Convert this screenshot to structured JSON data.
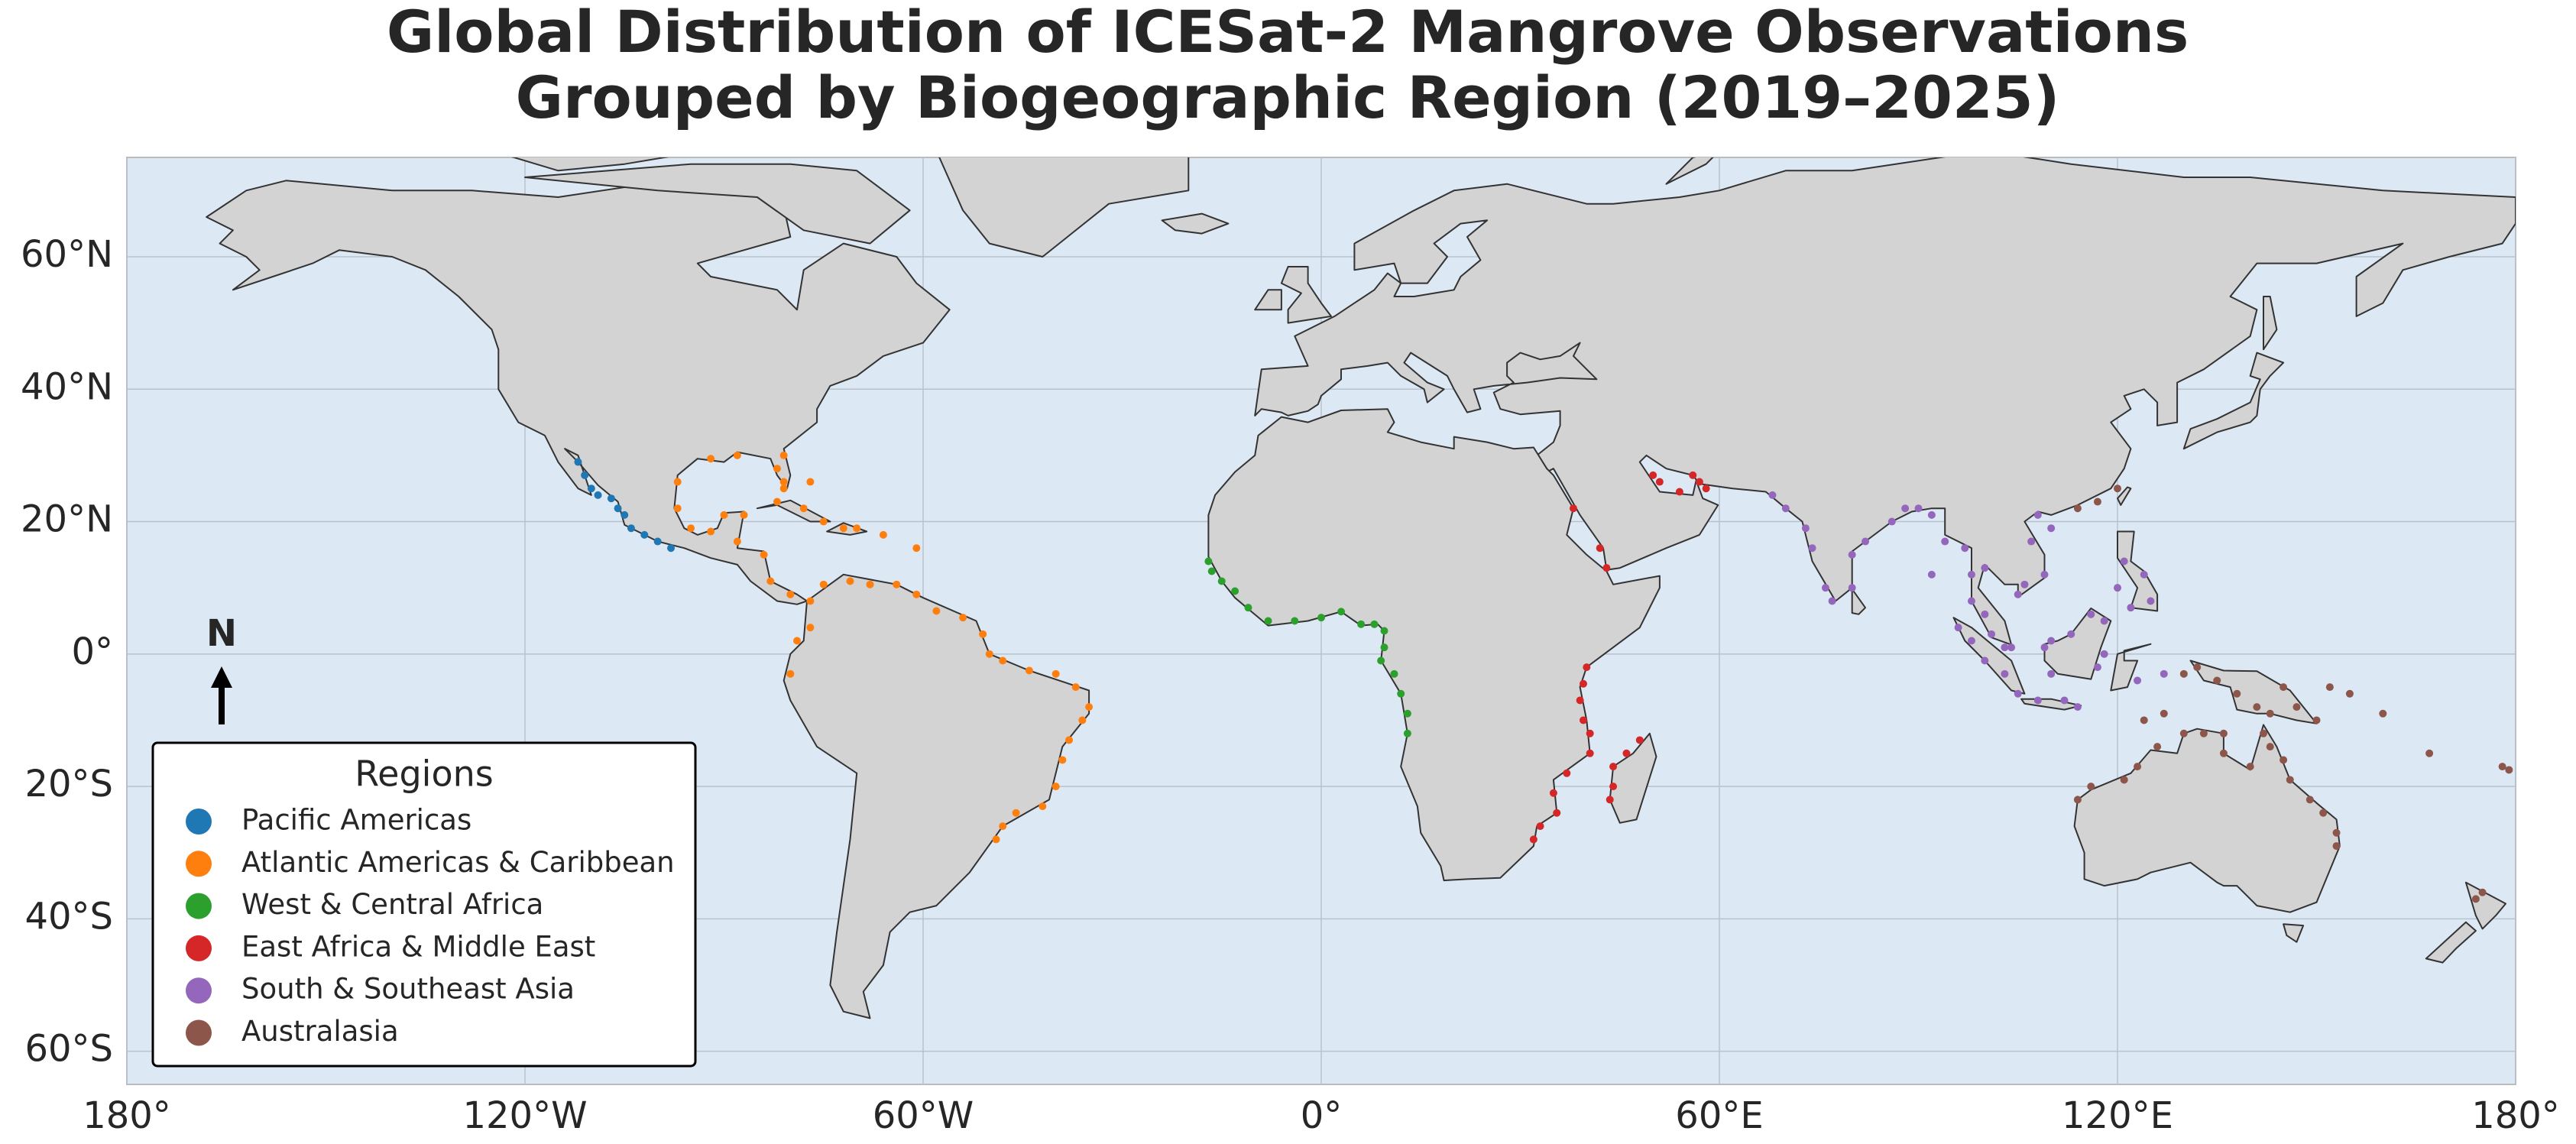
{
  "chart_data": {
    "type": "scatter",
    "title": [
      "Global Distribution of ICESat-2 Mangrove Observations",
      "Grouped by Biogeographic Region (2019–2025)"
    ],
    "xlim": [
      -180,
      180
    ],
    "ylim": [
      -65,
      75
    ],
    "xticks": [
      {
        "value": -180,
        "label": "180°"
      },
      {
        "value": -120,
        "label": "120°W"
      },
      {
        "value": -60,
        "label": "60°W"
      },
      {
        "value": 0,
        "label": "0°"
      },
      {
        "value": 60,
        "label": "60°E"
      },
      {
        "value": 120,
        "label": "120°E"
      },
      {
        "value": 180,
        "label": "180°"
      }
    ],
    "yticks": [
      {
        "value": -60,
        "label": "60°S"
      },
      {
        "value": -40,
        "label": "40°S"
      },
      {
        "value": -20,
        "label": "20°S"
      },
      {
        "value": 0,
        "label": "0°"
      },
      {
        "value": 20,
        "label": "20°N"
      },
      {
        "value": 40,
        "label": "40°N"
      },
      {
        "value": 60,
        "label": "60°N"
      }
    ],
    "grid": true,
    "legend": "lower left",
    "legend_title": "Regions",
    "north_arrow": "N",
    "series": [
      {
        "name": "Pacific Americas",
        "color": "#1f77b4",
        "x": [
          -112,
          -111,
          -110,
          -109,
          -107,
          -106,
          -105,
          -104,
          -102,
          -100,
          -98
        ],
        "values": [
          29,
          27,
          25,
          24,
          23.5,
          22,
          21,
          19,
          18,
          17,
          16
        ]
      },
      {
        "name": "Atlantic Americas & Caribbean",
        "color": "#ff7f0e",
        "x": [
          -97,
          -97,
          -95,
          -92,
          -90,
          -87,
          -88,
          -84,
          -83,
          -80,
          -77,
          -75,
          -71,
          -68,
          -64,
          -61,
          -58,
          -54,
          -51,
          -50,
          -48,
          -44,
          -40,
          -37,
          -35,
          -36,
          -38,
          -39,
          -40,
          -42,
          -46,
          -48,
          -49,
          -82,
          -78,
          -75,
          -72,
          -70,
          -66,
          -61,
          -77,
          -81,
          -81,
          -82,
          -80,
          -79,
          -77,
          -81,
          -88,
          -92
        ],
        "values": [
          26,
          22,
          19,
          18.5,
          21,
          21,
          17,
          15,
          11,
          9,
          8,
          10.5,
          11,
          10.5,
          10.5,
          9,
          6.5,
          5.5,
          3,
          0,
          -1,
          -2.5,
          -3,
          -5,
          -8,
          -10,
          -13,
          -16,
          -20,
          -23,
          -24,
          -26,
          -28,
          23,
          22,
          20,
          19,
          19,
          18,
          16,
          26,
          25,
          26,
          28,
          -3,
          2,
          4,
          30,
          30,
          29.5
        ]
      },
      {
        "name": "West & Central Africa",
        "color": "#2ca02c",
        "x": [
          -17,
          -16.5,
          -15,
          -13,
          -11,
          -8,
          -4,
          0,
          3,
          6,
          8,
          9.5,
          9.5,
          9,
          11,
          12,
          13,
          13
        ],
        "values": [
          14,
          12.5,
          11,
          9.5,
          7,
          5,
          5,
          5.5,
          6.4,
          4.5,
          4.5,
          3.5,
          1,
          -1,
          -3,
          -6,
          -9,
          -12
        ]
      },
      {
        "name": "East Africa & Middle East",
        "color": "#d62728",
        "x": [
          40,
          39.5,
          39,
          39.5,
          40.5,
          40.5,
          37,
          35,
          35.5,
          33,
          32,
          44,
          44,
          43.5,
          46,
          48,
          56,
          57,
          54,
          51,
          50,
          43,
          42,
          38,
          58
        ],
        "values": [
          -2,
          -4.5,
          -7,
          -10,
          -12,
          -15,
          -18,
          -21,
          -24,
          -26,
          -28,
          -17,
          -20,
          -22,
          -15,
          -13,
          27,
          26,
          24.5,
          26,
          27,
          13,
          16,
          22,
          25
        ]
      },
      {
        "name": "South & Southeast Asia",
        "color": "#9467bd",
        "x": [
          68,
          70,
          73,
          74,
          76,
          77,
          80,
          80,
          82,
          86,
          88,
          90,
          92,
          94,
          97,
          98,
          98,
          100,
          101,
          103,
          104,
          105,
          106,
          107,
          108,
          110,
          109,
          100,
          96,
          98,
          100,
          103,
          105,
          108,
          112,
          114,
          110,
          109,
          110,
          113,
          116,
          118,
          118,
          117,
          120,
          121,
          124,
          125,
          122,
          123,
          127,
          92
        ],
        "values": [
          24,
          22,
          19,
          16,
          10,
          8,
          10,
          15,
          17,
          20,
          22,
          22,
          21,
          17,
          16,
          12,
          8,
          6,
          3,
          1,
          1,
          9,
          10.5,
          17,
          21,
          19,
          12,
          13,
          4,
          2,
          -1,
          -3,
          -6,
          -7,
          -7,
          -8,
          -3,
          1,
          2,
          3,
          6,
          5,
          0,
          -2,
          10,
          14,
          12,
          8,
          7,
          -4,
          -3,
          12
        ]
      },
      {
        "name": "Australasia",
        "color": "#8c564b",
        "x": [
          114,
          117,
          120,
          130,
          132,
          135,
          138,
          141,
          143,
          147,
          150,
          152,
          145,
          155,
          160,
          167,
          178,
          179,
          114,
          116,
          121,
          123,
          126,
          130,
          133,
          136,
          136,
          140,
          142,
          143,
          145,
          146,
          149,
          151,
          153,
          153,
          124,
          127,
          174,
          175
        ],
        "values": [
          22,
          23,
          25,
          -3,
          -2,
          -4,
          -6,
          -8,
          -9,
          -8,
          -10,
          -5,
          -5,
          -6,
          -9,
          -15,
          -17,
          -17.5,
          -22,
          -20,
          -19,
          -17,
          -14,
          -12,
          -12,
          -12,
          -15,
          -17,
          -12,
          -14,
          -16,
          -19,
          -22,
          -24,
          -27,
          -29,
          -10,
          -9,
          -37,
          -36
        ]
      }
    ]
  }
}
